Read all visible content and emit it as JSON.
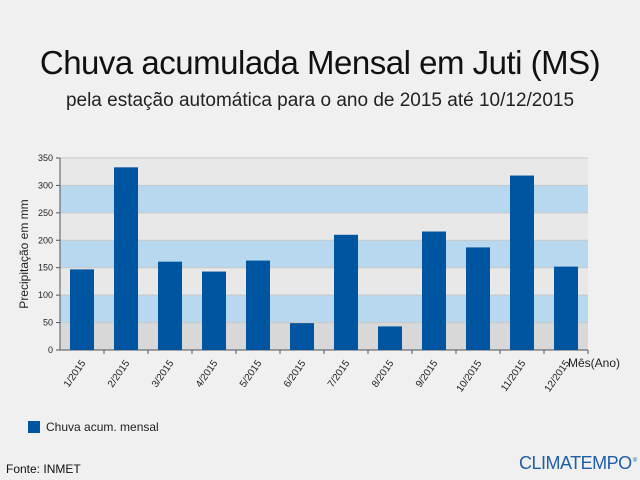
{
  "header": {
    "title": "Chuva acumulada Mensal em Juti (MS)",
    "subtitle": "pela estação automática para o ano de 2015 até 10/12/2015"
  },
  "footer": {
    "source": "Fonte: INMET",
    "brand": "CLIMATEMPO",
    "brand_mark": "®"
  },
  "colors": {
    "bar": "#0055a0",
    "band_light_blue": "#b8d8f0",
    "band_gray": "#d8d8d8",
    "band_light_gray": "#e8e8e8",
    "brand": "#1f5fa8"
  },
  "chart_data": {
    "type": "bar",
    "title": "Chuva acumulada Mensal em Juti (MS)",
    "subtitle": "pela estação automática para o ano de 2015 até 10/12/2015",
    "xlabel": "Mês(Ano)",
    "ylabel": "Precipitação em mm",
    "ylim": [
      0,
      350
    ],
    "yticks": [
      0,
      50,
      100,
      150,
      200,
      250,
      300,
      350
    ],
    "grid": true,
    "legend_position": "bottom-left",
    "categories": [
      "1/2015",
      "2/2015",
      "3/2015",
      "4/2015",
      "5/2015",
      "6/2015",
      "7/2015",
      "8/2015",
      "9/2015",
      "10/2015",
      "11/2015",
      "12/2015"
    ],
    "series": [
      {
        "name": "Chuva acum. mensal",
        "values": [
          147,
          333,
          161,
          143,
          163,
          49,
          210,
          43,
          216,
          187,
          318,
          152
        ]
      }
    ]
  }
}
